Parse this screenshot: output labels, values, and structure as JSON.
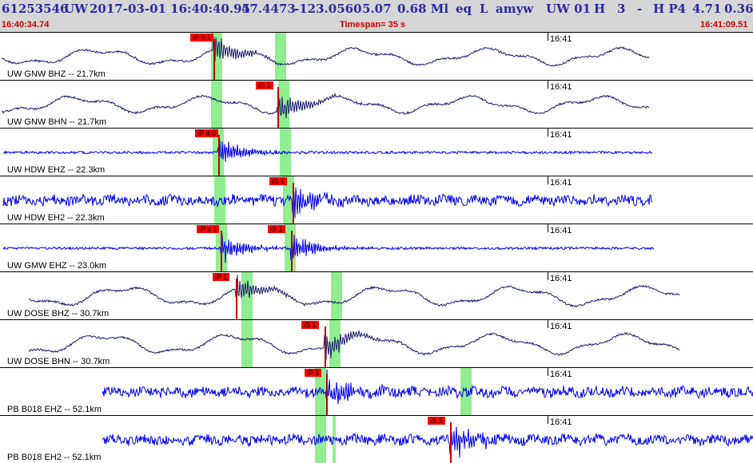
{
  "header": {
    "event_id": "61253546",
    "network": "UW",
    "origin_time": "2017-03-01 16:40:40.95",
    "latitude": "47.4473",
    "longitude": "-123.0560",
    "depth": "5.07",
    "magnitude": "0.68 Ml",
    "etype": "eq",
    "source_code": "L",
    "author": "amyw",
    "region": "UW 01",
    "flag_h1": "H",
    "count": "3",
    "dash": "-",
    "flag_h2": "H P4",
    "value_a": "4.71",
    "value_b": "0.36",
    "start_time": "16:40:34.74",
    "timespan": "Timespan=  35 s",
    "end_time": "16:41:09.51"
  },
  "tick_time": "16:41",
  "colors": {
    "header_bg": "#d6d6d6",
    "header_text": "#2b2a9e",
    "subheader_text": "#cc0000",
    "trace_dark": "#1a1a6e",
    "trace_blue": "#0000ee",
    "pick_flag": "#ff0000",
    "window_band": "#90ee90"
  },
  "channels": [
    {
      "label": "UW GNW BHZ -- 21.7km",
      "picks": [
        "iP 0.1"
      ],
      "trace_color": "#1a1a6e"
    },
    {
      "label": "UW GNW BHN -- 21.7km",
      "picks": [
        "iS 1"
      ],
      "trace_color": "#1a1a6e"
    },
    {
      "label": "UW HDW EHZ -- 22.3km",
      "picks": [
        "iP d 0"
      ],
      "trace_color": "#0000ee"
    },
    {
      "label": "UW HDW EH2 -- 22.3km",
      "picks": [
        "iS 1"
      ],
      "trace_color": "#0000ee"
    },
    {
      "label": "UW GMW EHZ -- 23.0km",
      "picks": [
        "iP c 1",
        "iS 1"
      ],
      "trace_color": "#0000ee"
    },
    {
      "label": "UW DOSE BHZ -- 30.7km",
      "picks": [
        "iP 1"
      ],
      "trace_color": "#1a1a6e"
    },
    {
      "label": "UW DOSE BHN -- 30.7km",
      "picks": [
        "iS 1"
      ],
      "trace_color": "#1a1a6e"
    },
    {
      "label": "PB B018 EHZ -- 52.1km",
      "picks": [
        "iP 1"
      ],
      "trace_color": "#0000ee"
    },
    {
      "label": "PB B018 EH2 -- 52.1km",
      "picks": [
        "iS 1"
      ],
      "trace_color": "#0000ee"
    }
  ]
}
